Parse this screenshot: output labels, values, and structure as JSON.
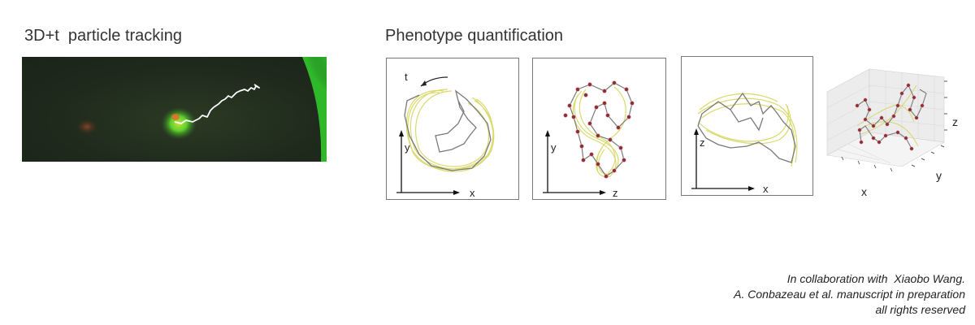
{
  "left_title": "3D+t  particle tracking",
  "right_title": "Phenotype quantification",
  "panels": [
    {
      "axes": {
        "x": "x",
        "y": "y"
      },
      "extra": "t"
    },
    {
      "axes": {
        "x": "z",
        "y": "y"
      }
    },
    {
      "axes": {
        "x": "x",
        "y": "z"
      }
    },
    {
      "axes": {
        "x": "x",
        "y": "y",
        "z": "z"
      }
    }
  ],
  "credits": {
    "line1": "In collaboration with  Xiaobo Wang.",
    "line2": "A. Conbazeau et al. manuscript in preparation",
    "line3": "all rights reserved"
  },
  "colors": {
    "trajectory": "#7a7a7a",
    "fit": "#d9d86a",
    "marker": "#b0505a",
    "cell": "#4ec02c",
    "background_tissue": "#2fb82a"
  }
}
